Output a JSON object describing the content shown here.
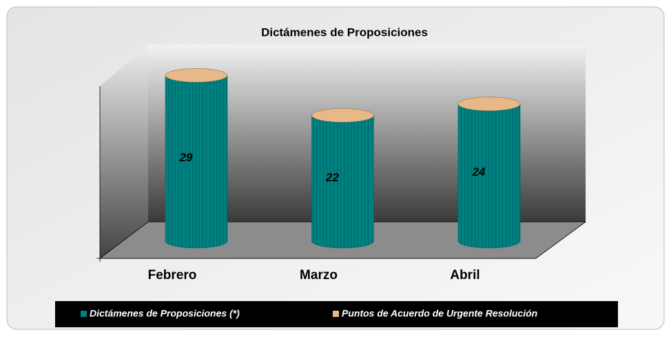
{
  "chart_data": {
    "type": "cylinder",
    "title": "Dictámenes de Proposiciones",
    "categories": [
      "Febrero",
      "Marzo",
      "Abril"
    ],
    "series": [
      {
        "name": "Dictámenes de Proposiciones (*)",
        "color": "#008080",
        "values": [
          29,
          22,
          24
        ]
      },
      {
        "name": "Puntos de Acuerdo de Urgente Resolución",
        "color": "#e8b988"
      }
    ],
    "legend": "bottom"
  }
}
